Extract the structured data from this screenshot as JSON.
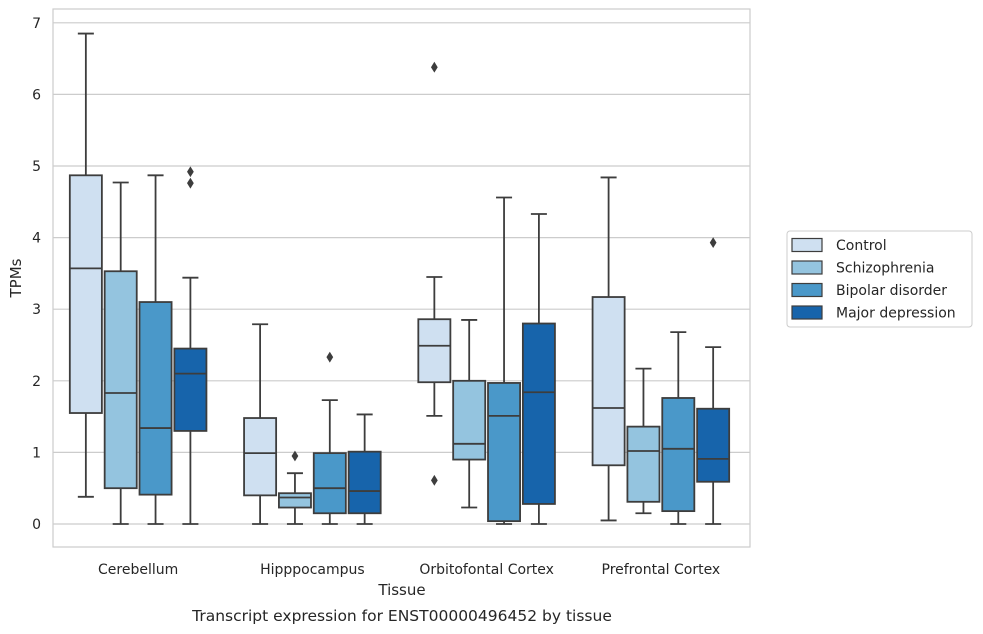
{
  "chart_data": {
    "type": "box",
    "caption": "Transcript expression for ENST00000496452 by tissue",
    "xlabel": "Tissue",
    "ylabel": "TPMs",
    "ylim": [
      -0.33,
      7.18
    ],
    "yticks": [
      0,
      1,
      2,
      3,
      4,
      5,
      6,
      7
    ],
    "grid": true,
    "legend_position": "right",
    "categories": [
      "Cerebellum",
      "Hipppocampus",
      "Orbitofontal Cortex",
      "Prefrontal Cortex"
    ],
    "series": [
      {
        "name": "Control",
        "color": "#cfe0f1",
        "boxes": [
          {
            "whisker_low": 0.38,
            "q1": 1.55,
            "median": 3.57,
            "q3": 4.87,
            "whisker_high": 6.85,
            "outliers": []
          },
          {
            "whisker_low": 0.0,
            "q1": 0.4,
            "median": 0.99,
            "q3": 1.48,
            "whisker_high": 2.79,
            "outliers": []
          },
          {
            "whisker_low": 1.51,
            "q1": 1.98,
            "median": 2.49,
            "q3": 2.86,
            "whisker_high": 3.45,
            "outliers": [
              6.38,
              0.61
            ]
          },
          {
            "whisker_low": 0.05,
            "q1": 0.82,
            "median": 1.62,
            "q3": 3.17,
            "whisker_high": 4.84,
            "outliers": []
          }
        ]
      },
      {
        "name": "Schizophrenia",
        "color": "#94c4df",
        "boxes": [
          {
            "whisker_low": 0.0,
            "q1": 0.5,
            "median": 1.83,
            "q3": 3.53,
            "whisker_high": 4.77,
            "outliers": []
          },
          {
            "whisker_low": 0.0,
            "q1": 0.23,
            "median": 0.37,
            "q3": 0.43,
            "whisker_high": 0.71,
            "outliers": [
              0.95
            ]
          },
          {
            "whisker_low": 0.23,
            "q1": 0.9,
            "median": 1.12,
            "q3": 2.0,
            "whisker_high": 2.85,
            "outliers": []
          },
          {
            "whisker_low": 0.15,
            "q1": 0.31,
            "median": 1.02,
            "q3": 1.36,
            "whisker_high": 2.17,
            "outliers": []
          }
        ]
      },
      {
        "name": "Bipolar disorder",
        "color": "#4a98c9",
        "boxes": [
          {
            "whisker_low": 0.0,
            "q1": 0.41,
            "median": 1.34,
            "q3": 3.1,
            "whisker_high": 4.87,
            "outliers": []
          },
          {
            "whisker_low": 0.0,
            "q1": 0.15,
            "median": 0.5,
            "q3": 0.99,
            "whisker_high": 1.73,
            "outliers": [
              2.33
            ]
          },
          {
            "whisker_low": 0.0,
            "q1": 0.04,
            "median": 1.51,
            "q3": 1.97,
            "whisker_high": 4.56,
            "outliers": []
          },
          {
            "whisker_low": 0.0,
            "q1": 0.18,
            "median": 1.05,
            "q3": 1.76,
            "whisker_high": 2.68,
            "outliers": []
          }
        ]
      },
      {
        "name": "Major depression",
        "color": "#1764ab",
        "boxes": [
          {
            "whisker_low": 0.0,
            "q1": 1.3,
            "median": 2.1,
            "q3": 2.45,
            "whisker_high": 3.44,
            "outliers": [
              4.92,
              4.76
            ]
          },
          {
            "whisker_low": 0.0,
            "q1": 0.15,
            "median": 0.46,
            "q3": 1.01,
            "whisker_high": 1.53,
            "outliers": []
          },
          {
            "whisker_low": 0.0,
            "q1": 0.28,
            "median": 1.84,
            "q3": 2.8,
            "whisker_high": 4.33,
            "outliers": []
          },
          {
            "whisker_low": 0.0,
            "q1": 0.59,
            "median": 0.91,
            "q3": 1.61,
            "whisker_high": 2.47,
            "outliers": [
              3.93
            ]
          }
        ]
      }
    ]
  }
}
